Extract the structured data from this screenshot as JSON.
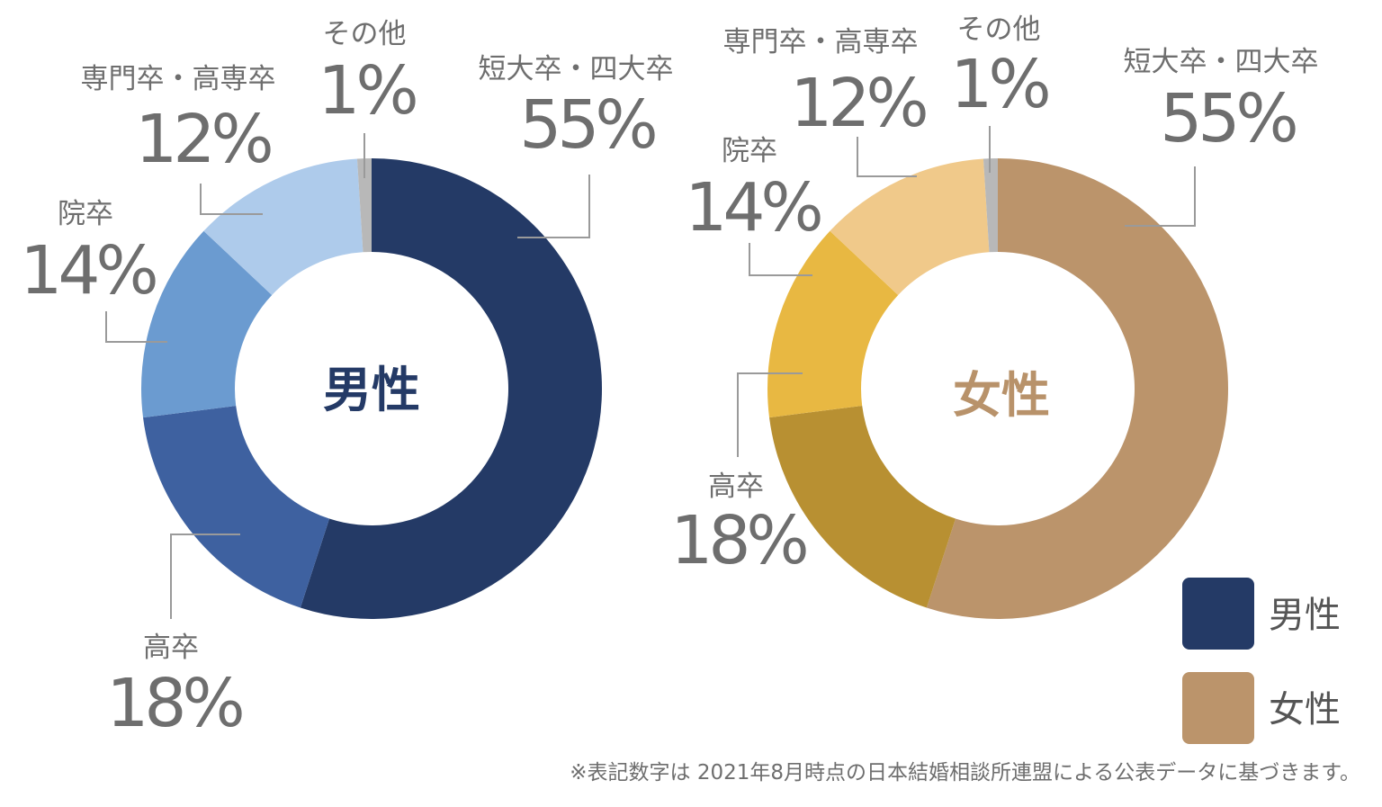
{
  "chart_data": [
    {
      "type": "pie",
      "center_label": "男性",
      "center_color": "#243a66",
      "categories": [
        "短大卒・四大卒",
        "高卒",
        "院卒",
        "専門卒・高専卒",
        "その他"
      ],
      "values": [
        55,
        18,
        14,
        12,
        1
      ],
      "value_labels": [
        "55%",
        "18%",
        "14%",
        "12%",
        "1%"
      ],
      "colors": [
        "#243a66",
        "#3e61a0",
        "#6b9bd0",
        "#aecbeb",
        "#b8b8b8"
      ]
    },
    {
      "type": "pie",
      "center_label": "女性",
      "center_color": "#b8926a",
      "categories": [
        "短大卒・四大卒",
        "高卒",
        "院卒",
        "専門卒・高専卒",
        "その他"
      ],
      "values": [
        55,
        18,
        14,
        12,
        1
      ],
      "value_labels": [
        "55%",
        "18%",
        "14%",
        "12%",
        "1%"
      ],
      "colors": [
        "#bb946b",
        "#b89032",
        "#e8b842",
        "#f0c98a",
        "#b8b8b8"
      ]
    }
  ],
  "legend": [
    {
      "label": "男性",
      "color": "#243a66"
    },
    {
      "label": "女性",
      "color": "#bb946b"
    }
  ],
  "footnote": "※表記数字は 2021年8月時点の日本結婚相談所連盟による公表データに基づきます。"
}
